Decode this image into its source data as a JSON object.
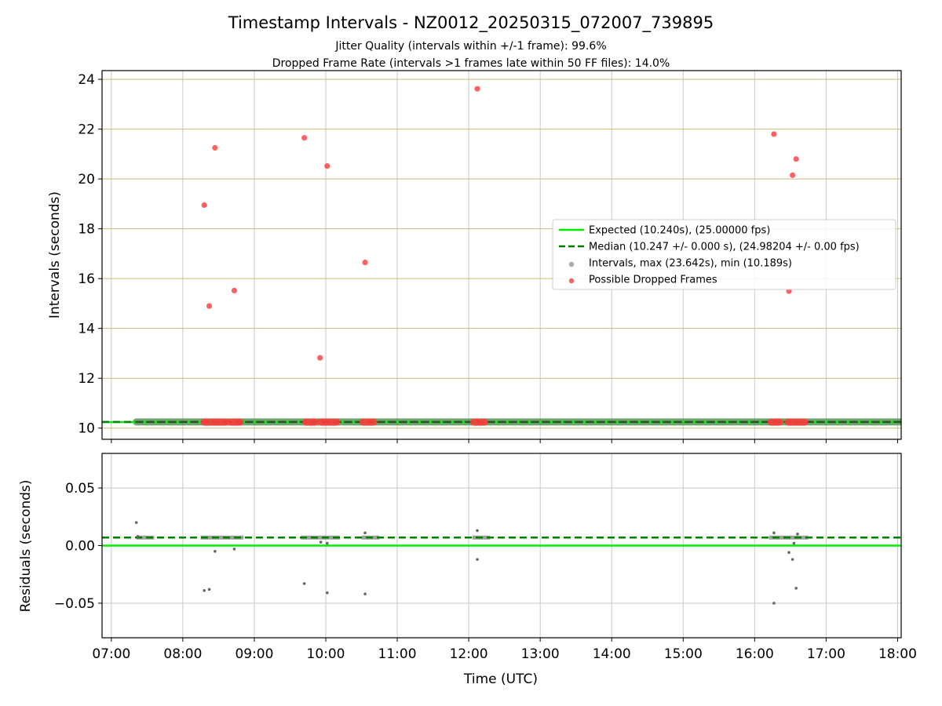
{
  "chart_data": {
    "type": "scatter",
    "title": "Timestamp Intervals - NZ0012_20250315_072007_739895",
    "subtitle_lines": [
      "Jitter Quality (intervals within +/-1 frame): 99.6%",
      "Dropped Frame Rate (intervals >1 frames late within 50 FF files): 14.0%"
    ],
    "xlabel": "Time (UTC)",
    "x_ticks": [
      "07:00",
      "08:00",
      "09:00",
      "10:00",
      "11:00",
      "12:00",
      "13:00",
      "14:00",
      "15:00",
      "16:00",
      "17:00",
      "18:00"
    ],
    "xlim_hours": [
      6.87,
      18.05
    ],
    "colors": {
      "expected": "#00ee00",
      "median": "#008000",
      "intervals": "#808080",
      "dropped": "#ff3b3b",
      "grid_top": "#c9be78",
      "grid": "#c8c8c8"
    },
    "legend": {
      "placement": "center-right",
      "entries": [
        {
          "key": "expected",
          "label": "Expected (10.240s), (25.00000 fps)"
        },
        {
          "key": "median",
          "label": "Median (10.247 +/- 0.000 s), (24.98204 +/- 0.00 fps)"
        },
        {
          "key": "intervals",
          "label": "Intervals, max (23.642s), min (10.189s)"
        },
        {
          "key": "dropped",
          "label": "Possible Dropped Frames"
        }
      ]
    },
    "top": {
      "ylabel": "Intervals (seconds)",
      "ylim": [
        9.55,
        24.35
      ],
      "y_ticks": [
        10,
        12,
        14,
        16,
        18,
        20,
        22,
        24
      ],
      "expected": 10.24,
      "median": 10.247,
      "intervals_span": [
        7.35,
        18.05
      ],
      "dropped_cluster_segments": [
        [
          8.3,
          8.6
        ],
        [
          8.67,
          8.8
        ],
        [
          9.72,
          9.85
        ],
        [
          9.93,
          10.15
        ],
        [
          10.52,
          10.67
        ],
        [
          12.07,
          12.22
        ],
        [
          16.23,
          16.35
        ],
        [
          16.47,
          16.7
        ]
      ],
      "dropped_points": [
        {
          "t": 8.3,
          "y": 18.95
        },
        {
          "t": 8.37,
          "y": 14.9
        },
        {
          "t": 8.45,
          "y": 21.25
        },
        {
          "t": 8.72,
          "y": 15.52
        },
        {
          "t": 9.7,
          "y": 21.65
        },
        {
          "t": 9.92,
          "y": 12.82
        },
        {
          "t": 10.02,
          "y": 20.52
        },
        {
          "t": 10.55,
          "y": 16.65
        },
        {
          "t": 12.12,
          "y": 23.62
        },
        {
          "t": 16.27,
          "y": 21.8
        },
        {
          "t": 16.48,
          "y": 15.5
        },
        {
          "t": 16.53,
          "y": 20.15
        },
        {
          "t": 16.58,
          "y": 20.8
        }
      ]
    },
    "bottom": {
      "ylabel": "Residuals (seconds)",
      "ylim": [
        -0.08,
        0.08
      ],
      "y_ticks": [
        0.05,
        0.0,
        -0.05
      ],
      "y_tick_labels": [
        "0.05",
        "0.00",
        "−0.05"
      ],
      "expected": 0.0,
      "median": 0.007,
      "residual_points": [
        {
          "t": 7.35,
          "y": 0.02
        },
        {
          "t": 7.37,
          "y": 0.008
        },
        {
          "t": 8.3,
          "y": -0.039
        },
        {
          "t": 8.37,
          "y": -0.038
        },
        {
          "t": 8.45,
          "y": -0.005
        },
        {
          "t": 8.72,
          "y": -0.003
        },
        {
          "t": 9.7,
          "y": -0.033
        },
        {
          "t": 9.93,
          "y": 0.003
        },
        {
          "t": 10.02,
          "y": 0.002
        },
        {
          "t": 10.02,
          "y": -0.041
        },
        {
          "t": 10.55,
          "y": -0.042
        },
        {
          "t": 10.55,
          "y": 0.011
        },
        {
          "t": 12.12,
          "y": 0.013
        },
        {
          "t": 12.12,
          "y": -0.012
        },
        {
          "t": 16.27,
          "y": 0.011
        },
        {
          "t": 16.27,
          "y": -0.05
        },
        {
          "t": 16.48,
          "y": -0.006
        },
        {
          "t": 16.53,
          "y": -0.012
        },
        {
          "t": 16.55,
          "y": 0.002
        },
        {
          "t": 16.58,
          "y": -0.037
        },
        {
          "t": 16.6,
          "y": 0.01
        }
      ],
      "residual_cluster_segments": [
        [
          7.35,
          7.6
        ],
        [
          8.25,
          8.85
        ],
        [
          9.65,
          10.2
        ],
        [
          10.5,
          10.75
        ],
        [
          12.05,
          12.3
        ],
        [
          16.2,
          16.75
        ]
      ]
    }
  }
}
